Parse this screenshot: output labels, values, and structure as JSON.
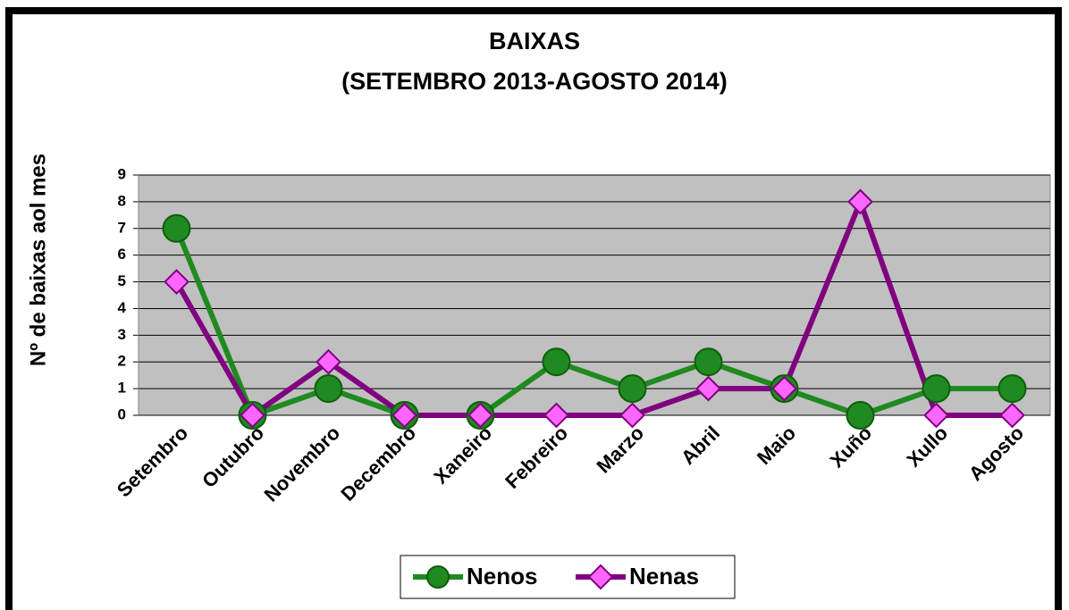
{
  "chart_data": {
    "type": "line",
    "title": "BAIXAS",
    "subtitle": "(SETEMBRO 2013-AGOSTO 2014)",
    "ylabel": "Nº de baixas aol mes",
    "categories": [
      "Setembro",
      "Outubro",
      "Novembro",
      "Decembro",
      "Xaneiro",
      "Febreiro",
      "Marzo",
      "Abril",
      "Maio",
      "Xuño",
      "Xullo",
      "Agosto"
    ],
    "series": [
      {
        "name": "Nenos",
        "color": "#1f8a1f",
        "values": [
          7,
          0,
          1,
          0,
          0,
          2,
          1,
          2,
          1,
          0,
          1,
          1
        ]
      },
      {
        "name": "Nenas",
        "color": "#800080",
        "values": [
          5,
          0,
          2,
          0,
          0,
          0,
          0,
          1,
          1,
          8,
          0,
          0
        ]
      }
    ],
    "ylim": [
      0,
      9
    ],
    "yticks": [
      0,
      1,
      2,
      3,
      4,
      5,
      6,
      7,
      8,
      9
    ],
    "grid": true
  }
}
